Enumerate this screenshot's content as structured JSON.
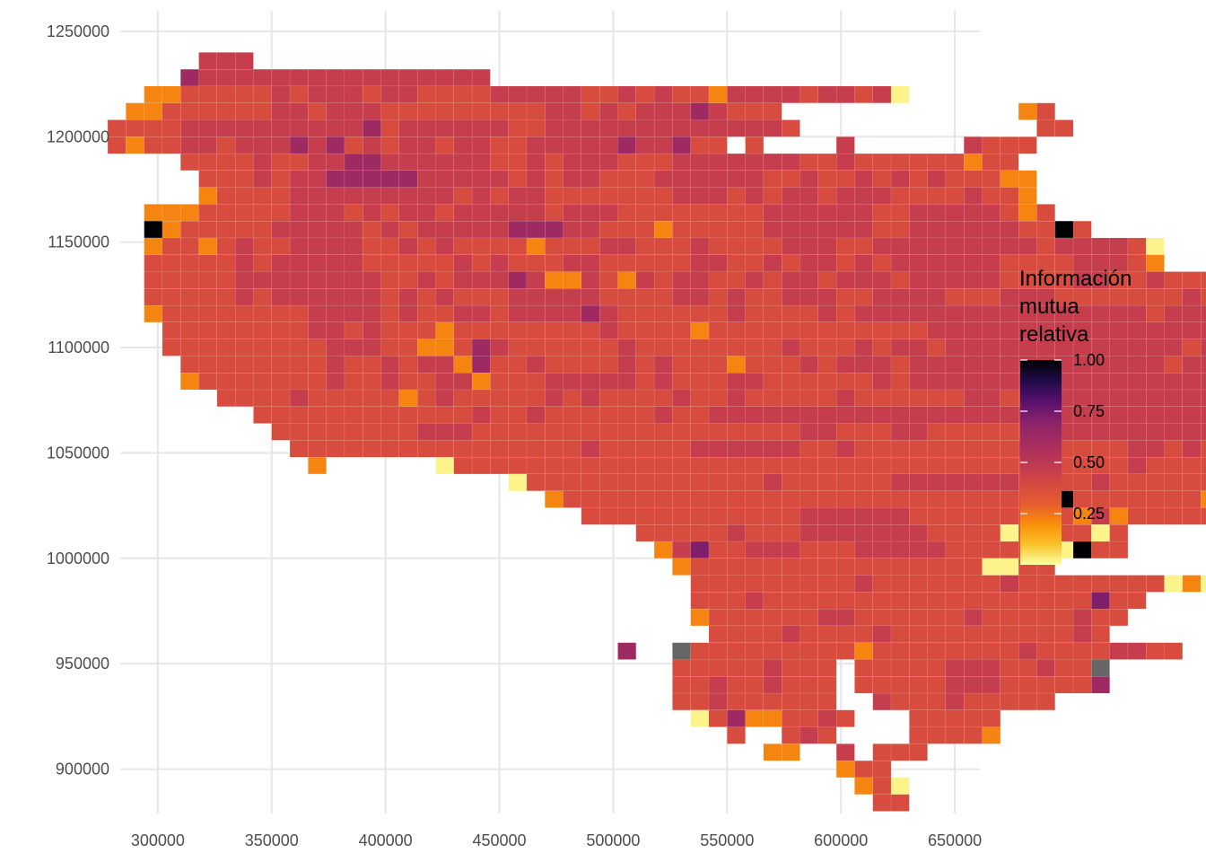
{
  "chart_data": {
    "type": "heatmap",
    "title": "",
    "xlabel": "",
    "ylabel": "",
    "x_ticks": [
      300000,
      350000,
      400000,
      450000,
      500000,
      550000,
      600000,
      650000
    ],
    "x_tick_labels": [
      "300000",
      "350000",
      "400000",
      "450000",
      "500000",
      "550000",
      "600000",
      "650000"
    ],
    "y_ticks": [
      900000,
      950000,
      1000000,
      1050000,
      1100000,
      1150000,
      1200000,
      1250000
    ],
    "y_tick_labels": [
      "900000",
      "950000",
      "1000000",
      "1050000",
      "1100000",
      "1150000",
      "1200000",
      "1250000"
    ],
    "xlim": [
      283500,
      661000
    ],
    "ylim": [
      881500,
      1255500
    ],
    "grid": true,
    "cell_size": 8000,
    "na_color": "#666666",
    "colormap": "inferno",
    "legend": {
      "title_lines": [
        "Información",
        "mutua",
        "relativa"
      ],
      "position": "right",
      "breaks": [
        0.25,
        0.5,
        0.75,
        1.0
      ],
      "labels": [
        "0.25",
        "0.50",
        "0.75",
        "1.00"
      ],
      "min": 0.0,
      "max": 1.0
    },
    "rows": [
      {
        "y": 1236000,
        "x0": 322000,
        "v": "4 4 4"
      },
      {
        "y": 1228000,
        "x0": 314000,
        "v": "5 4 4 4 4 4 4 4 4 4 4 4 4 4 4 4 4 _ _ _ _ _ _ _ _ _ _ _ _ _ _ _ _ _ _ _ _ _ _ _ _"
      },
      {
        "y": 1220000,
        "x0": 298000,
        "v": "2 2 3 3 3 3 3 4 3 4 4 4 3 4 4 3 3 3 3 4 4 4 4 4 3 3 4 3 4 3 3 2 4 4 4 4 3 4 4 3 4 1"
      },
      {
        "y": 1212000,
        "x0": 290000,
        "v": "2 2 3 3 3 3 3 3 4 4 3 4 4 4 3 3 3 3 3 3 3 3 3 4 4 3 4 3 4 4 4 5 4 3 3 3 _ _ _ _ _ _ _ _ _ _ _ _ _ 2 3"
      },
      {
        "y": 1204000,
        "x0": 282000,
        "v": "3 3 3 3 4 4 4 4 4 4 4 4 4 4 5 3 4 4 4 4 4 4 3 3 4 4 4 4 4 4 4 4 4 4 4 4 4 3 _ _ _ _ _ _ _ _ _ _ _ _ _ 3 3"
      },
      {
        "y": 1196000,
        "x0": 282000,
        "v": "3 2 3 3 4 4 3 4 4 4 5 4 5 3 4 3 4 4 3 4 4 3 3 4 4 4 4 4 5 4 4 5 3 3 _ 3 _ _ _ _ 4 _ _ _ _ _ _ 4 3 3 3"
      },
      {
        "y": 1188000,
        "x0": 314000,
        "v": "3 3 3 3 4 3 3 4 4 5 5 4 4 4 4 4 4 3 3 4 3 4 4 4 3 3 3 4 4 4 4 4 4 4 3 3 4 3 3 3 3 3 3 2 3 3"
      },
      {
        "y": 1180000,
        "x0": 298000,
        "v": "_ _ _ 3 3 3 4 3 4 4 5 5 5 5 5 4 4 4 4 4 3 4 3 4 4 3 3 3 4 4 4 4 4 4 3 3 4 3 3 4 3 4 3 4 3 3 3 2 2"
      },
      {
        "y": 1172000,
        "x0": 298000,
        "v": "_ _ _ 2 3 3 3 3 4 4 4 4 4 4 4 4 4 3 4 3 4 4 3 3 3 3 3 3 3 4 4 4 3 4 3 4 4 3 4 4 4 3 3 3 3 4 3 3 2"
      },
      {
        "y": 1164000,
        "x0": 290000,
        "v": "_ 2 2 2 3 3 3 3 3 4 4 4 3 4 3 4 4 3 4 4 4 4 4 3 4 4 4 3 3 3 3 3 3 3 3 4 4 4 4 4 4 3 3 4 4 4 4 4 3 2 3"
      },
      {
        "y": 1156000,
        "x0": 290000,
        "v": "_ 10 2 3 3 3 3 3 4 4 4 4 4 3 4 3 4 4 4 4 4 5 5 5 4 4 3 3 3 2 3 3 3 3 3 4 4 4 4 4 4 3 3 4 4 4 4 4 4 3 3 10 3"
      },
      {
        "y": 1148000,
        "x0": 298000,
        "v": "2 3 3 2 3 4 3 3 4 4 4 4 3 3 4 3 4 3 3 3 3 2 3 3 3 4 4 3 3 3 4 3 3 3 3 4 4 4 3 3 4 4 4 4 4 4 4 4 4 3 4 4 4 4 3 1"
      },
      {
        "y": 1140000,
        "x0": 298000,
        "v": "3 3 3 3 3 4 3 4 4 4 4 4 3 3 3 3 3 4 3 4 3 3 3 4 4 3 3 3 3 3 4 4 3 3 4 3 4 4 3 4 3 4 4 4 4 4 4 3 3 3 3 4 4 4 3 2"
      },
      {
        "y": 1132000,
        "x0": 298000,
        "v": "3 3 3 3 3 4 4 4 4 4 4 4 4 3 3 4 3 4 4 4 5 4 2 2 4 3 2 4 3 4 4 3 3 4 3 4 4 3 4 4 4 3 4 4 4 4 4 3 3 3 3 4 4 3 3 4 3 3 3 3 2"
      },
      {
        "y": 1124000,
        "x0": 298000,
        "v": "3 3 3 3 3 4 3 4 4 4 4 4 4 3 4 3 4 3 3 3 4 4 4 4 4 3 3 3 3 4 4 3 4 3 3 4 4 4 3 3 4 4 4 4 3 3 3 4 4 4 3 3 3 3 3 3 3 4 3 4 3"
      },
      {
        "y": 1116000,
        "x0": 298000,
        "v": "2 3 3 3 3 3 3 3 3 4 4 4 4 3 4 3 3 4 4 3 4 4 4 4 5 4 3 3 3 3 3 3 4 3 3 3 3 4 3 4 4 4 4 4 4 4 4 4 4 4 4 4 4 4 4 3 4 4 4 4 4 2"
      },
      {
        "y": 1108000,
        "x0": 306000,
        "v": "3 3 3 3 3 3 3 3 4 4 3 4 3 3 3 2 3 3 3 3 3 3 3 3 4 3 3 3 3 2 3 3 3 3 3 3 3 3 3 3 3 3 4 4 4 4 4 4 4 4 4 4 4 4 4 4 4 4 4 4 4 3"
      },
      {
        "y": 1100000,
        "x0": 306000,
        "v": "3 3 3 3 3 3 3 3 3 4 4 4 3 3 2 2 3 5 4 3 3 3 3 3 3 4 3 3 3 3 3 3 3 3 4 3 3 3 4 3 4 4 3 4 4 4 4 4 4 4 4 4 4 4 4 4 3 4 4 4 4 4 4 4"
      },
      {
        "y": 1092000,
        "x0": 314000,
        "v": "3 3 3 3 3 3 3 3 4 3 3 4 3 4 4 2 5 3 3 4 3 3 3 3 4 3 4 3 3 3 2 3 3 3 4 3 4 4 4 3 4 4 4 4 4 4 4 4 4 4 4 4 4 4 3 4 4 4 4 4 4 4 4 4"
      },
      {
        "y": 1084000,
        "x0": 314000,
        "v": "2 3 3 3 3 3 3 3 4 3 3 4 3 3 4 4 2 3 3 3 4 4 4 4 4 3 4 3 3 3 4 4 3 3 3 3 3 3 4 3 4 4 4 4 4 4 4 4 4 4 4 4 4 4 4 4 4 4 4 4 4 4 4 4"
      },
      {
        "y": 1076000,
        "x0": 330000,
        "v": "3 3 3 3 4 3 3 3 3 3 2 3 4 3 3 3 3 3 4 3 4 3 3 3 3 4 3 3 4 3 3 3 3 3 4 3 3 3 3 3 3 4 4 3 3 3 4 4 4 4 4 4 4 4 4 4 4 4 4 4 4 4 4 4 4"
      },
      {
        "y": 1068000,
        "x0": 346000,
        "v": "3 3 3 3 3 3 3 3 3 3 3 3 4 3 3 4 3 3 3 3 3 3 4 3 3 4 4 4 4 4 4 4 4 4 4 4 4 4 4 4 4 4 4 4 4 4 4 4 4 4 4 4 4 4 4 4 4 4 4 4 4 3 4 4"
      },
      {
        "y": 1060000,
        "x0": 354000,
        "v": "3 3 3 3 3 3 3 3 4 4 4 3 3 3 3 3 3 3 3 3 3 3 3 3 3 3 3 3 3 4 4 3 3 3 4 4 3 3 3 3 3 3 4 4 4 4 4 4 4 4 4 4 4 4 4 4 4 4 4 4 4 4 4 4 4"
      },
      {
        "y": 1052000,
        "x0": 362000,
        "v": "3 3 3 3 3 3 3 3 3 3 3 3 3 3 3 3 4 3 3 3 3 3 4 4 4 4 4 4 3 3 4 3 3 3 3 3 3 3 3 3 4 4 3 3 3 3 4 4 3 4 3 4 4 4 4 4 4 4 4 4 4 4 4 4 4 4 4 4"
      },
      {
        "y": 1044000,
        "x0": 370000,
        "v": "2 _ _ _ _ _ _ 1 3 3 3 3 3 3 3 3 3 3 3 3 3 3 3 3 3 3 3 3 3 3 3 3 3 3 3 3 3 3 3 3 3 3 3 3 3 4 3 3 3 3 3 3 3 3 3 3 3 3 3 3 3 3 3 3 3 3 3 3 3"
      },
      {
        "y": 1036000,
        "x0": 458000,
        "v": "1 3 3 3 3 3 3 3 3 3 3 3 3 3 4 3 3 3 3 3 3 4 4 4 4 4 4 4 3 4 3 3 4 3 3 3 3 3 3 3 3 3 3 3 3 3 3 3 3 3 3 3 3 3 3 3 3 3 3 3 3 3 3 3 3 3 3"
      },
      {
        "y": 1028000,
        "x0": 474000,
        "v": "2 3 3 3 3 3 3 3 3 3 3 3 3 3 3 3 3 3 3 3 3 3 3 3 3 3 3 3 10 3 3 3 3 3 3 3 2 2 3"
      },
      {
        "y": 1020000,
        "x0": 490000,
        "v": "3 3 3 3 3 3 3 3 3 3 3 3 4 4 4 4 4 4 3 3 3 3 3 3 3 3 3 2 4 2 3 3 3 3 3"
      },
      {
        "y": 1012000,
        "x0": 514000,
        "v": "3 3 3 3 3 4 3 3 3 4 4 4 4 4 4 4 3 3 3 3 1 3 3 3 3 1 3"
      },
      {
        "y": 1004000,
        "x0": 522000,
        "v": "2 4 6 3 3 4 4 4 3 3 3 4 4 4 4 4 3 3 3 3 3 2 1 10 3 3"
      },
      {
        "y": 996000,
        "x0": 530000,
        "v": "2 3 3 3 3 3 3 3 3 3 3 3 3 3 3 3 3 1 1 3 3"
      },
      {
        "y": 988000,
        "x0": 538000,
        "v": "3 3 3 3 3 3 3 3 3 4 3 3 3 3 3 3 3 4 3 3 3 3 3 3 3 3 1 2 1"
      },
      {
        "y": 980000,
        "x0": 538000,
        "v": "3 3 3 4 3 3 3 3 3 3 3 3 3 3 3 3 3 3 3 3 3 3 6 3 3"
      },
      {
        "y": 972000,
        "x0": 538000,
        "v": "2 3 3 3 3 3 3 4 4 3 3 3 3 3 3 4 3 3 3 3 3 4 3 3"
      },
      {
        "y": 964000,
        "x0": 546000,
        "v": "3 3 3 3 4 3 3 3 3 4 3 3 3 3 3 3 3 3 3 3 4 3"
      },
      {
        "y": 956000,
        "x0": 506000,
        "v": "5 _ _ N 3 3 3 3 3 3 3 3 3 2 3 3 3 3 3 3 3 3 4 3 3 3 3 4 4 3 3"
      },
      {
        "y": 948000,
        "x0": 530000,
        "v": "3 3 3 3 3 4 3 3 3 _ 3 3 3 3 3 4 4 4 3 3 4 3 3 N"
      },
      {
        "y": 940000,
        "x0": 530000,
        "v": "3 3 4 3 3 4 3 3 3 _ 3 3 3 3 3 4 4 4 3 3 3 3 3 5"
      },
      {
        "y": 932000,
        "x0": 530000,
        "v": "3 3 4 3 3 3 3 3 3 _ _ 4 3 3 3 4 3 3 3 3 3"
      },
      {
        "y": 924000,
        "x0": 538000,
        "v": "1 3 5 2 2 3 3 4 3 _ _ _ 3 3 3 3 3"
      },
      {
        "y": 916000,
        "x0": 546000,
        "v": "_ 3 _ _ 3 4 3 _ _ _ _ 3 3 3 3 2"
      },
      {
        "y": 908000,
        "x0": 570000,
        "v": "2 2 _ _ 4 _ 3 3 3"
      },
      {
        "y": 900000,
        "x0": 602000,
        "v": "2 3 3"
      },
      {
        "y": 892000,
        "x0": 610000,
        "v": "2 3 1"
      },
      {
        "y": 884000,
        "x0": 618000,
        "v": "3 3"
      }
    ],
    "value_bins": {
      "1": 0.02,
      "2": 0.22,
      "3": 0.38,
      "4": 0.46,
      "5": 0.62,
      "6": 0.72,
      "10": 1.0,
      "N": null
    }
  }
}
